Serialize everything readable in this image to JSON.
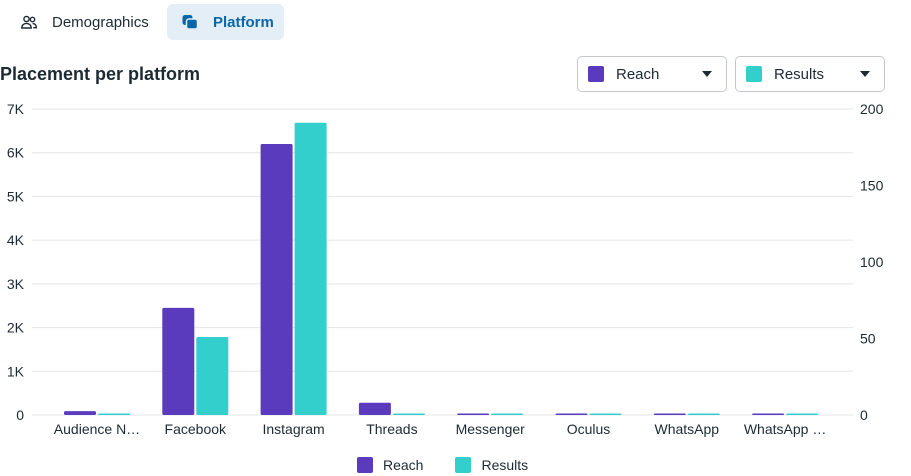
{
  "tabs": [
    {
      "label": "Demographics",
      "icon": "people-icon"
    },
    {
      "label": "Platform",
      "icon": "platform-icon",
      "active": true
    }
  ],
  "title": "Placement per platform",
  "dropdowns": {
    "left": {
      "label": "Reach",
      "color": "#5b3bbd"
    },
    "right": {
      "label": "Results",
      "color": "#32cfcc"
    }
  },
  "chart_data": {
    "type": "bar",
    "title": "Placement per platform",
    "categories": [
      "Audience N…",
      "Facebook",
      "Instagram",
      "Threads",
      "Messenger",
      "Oculus",
      "WhatsApp",
      "WhatsApp …"
    ],
    "series": [
      {
        "name": "Reach",
        "axis": "left",
        "color": "#5b3bbd",
        "values": [
          90,
          2450,
          6200,
          280,
          10,
          10,
          10,
          10
        ]
      },
      {
        "name": "Results",
        "axis": "right",
        "color": "#32cfcc",
        "values": [
          1,
          51,
          191,
          0.5,
          0.5,
          0.5,
          0.5,
          0.5
        ]
      }
    ],
    "y_left": {
      "min": 0,
      "max": 7000,
      "ticks": [
        0,
        1000,
        2000,
        3000,
        4000,
        5000,
        6000,
        7000
      ],
      "tick_labels": [
        "0",
        "1K",
        "2K",
        "3K",
        "4K",
        "5K",
        "6K",
        "7K"
      ]
    },
    "y_right": {
      "min": 0,
      "max": 200,
      "ticks": [
        0,
        50,
        100,
        150,
        200
      ],
      "tick_labels": [
        "0",
        "50",
        "100",
        "150",
        "200"
      ]
    },
    "legend": [
      {
        "label": "Reach",
        "color": "#5b3bbd"
      },
      {
        "label": "Results",
        "color": "#32cfcc"
      }
    ],
    "legend_position": "bottom",
    "grid": true
  }
}
